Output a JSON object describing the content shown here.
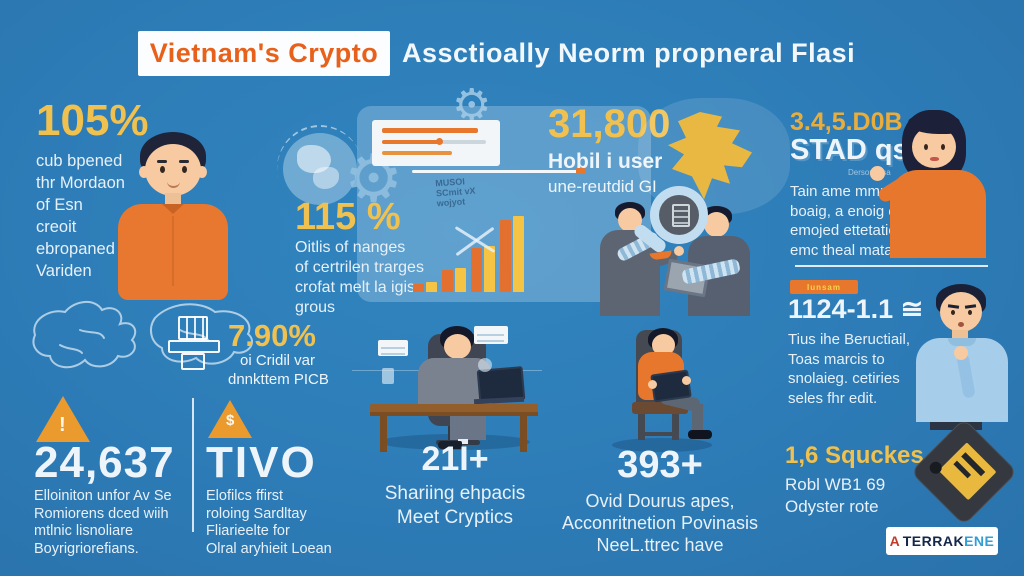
{
  "header": {
    "highlight": "Vietnam's Crypto",
    "rest": "Assctioally Neorm propneral Flasi"
  },
  "stats": {
    "s105": {
      "value": "105%",
      "lines": [
        "cub bpened",
        "thr Mordaon",
        "of Esn",
        "creoit",
        "ebropaned",
        "Variden"
      ]
    },
    "s115": {
      "value": "115 %",
      "lines": [
        "Oitlis of nanges",
        "of certrilen trarges",
        "crofat melt la igis",
        "grous"
      ]
    },
    "s31800": {
      "value": "31,800",
      "line1": "Hobil i user",
      "line2": "une-reutdid GI"
    },
    "s345": {
      "value": "3.4,5.D0B",
      "sub": "STAD qs",
      "ghost": "Dersonfinsa",
      "lines": [
        "Tain ame mmruois",
        "boaig, a enoig ero",
        "emojed ettetatioi to",
        "emc theal matablis"
      ]
    },
    "s790": {
      "value": "7.90%",
      "lines": [
        "oi Cridil var",
        "dnnkttem PICB"
      ]
    },
    "s1124": {
      "badge": "Iunsam",
      "value": "1124-1.1 ≅",
      "lines": [
        "Tius ihe Beructiail,",
        "Toas marcis to",
        "snolaieg. cetiries",
        "seles fhr edit."
      ]
    },
    "s24637": {
      "glyph": "!",
      "value": "24,637",
      "lines": [
        "Elloiniton unfor Av Se",
        "Romiorens dced wiih",
        "mtlnic lisnoliare",
        "Boyrigriorefians."
      ]
    },
    "stivo": {
      "glyph": "$",
      "value": "TIVO",
      "lines": [
        "Elofilcs ffirst",
        "roloing Sardltay",
        "Fliarieelte for",
        "Olral aryhieit Loean"
      ]
    },
    "s21": {
      "value": "21I+",
      "lines": [
        "Shariing ehpacis",
        "Meet Cryptics"
      ]
    },
    "s393": {
      "value": "393+",
      "lines": [
        "Ovid Dourus apes,",
        "Acconritnetion Povinasis",
        "NeeL.ttrec have"
      ]
    },
    "s16": {
      "value": "1,6 Squckes",
      "lines": [
        "Robl WB1 69",
        "Odyster rote"
      ]
    }
  },
  "panel": {
    "stamp": [
      "MUSOI",
      "SCmit vX",
      "wojyot"
    ]
  },
  "icons": {
    "gear": "⚙"
  },
  "logo": {
    "mark": "A",
    "name_dark": "TERRAK",
    "name_light": "ENE"
  },
  "colors": {
    "background": "#2d7cb7",
    "accent_yellow": "#f0c14e",
    "accent_orange": "#e8772e",
    "title_orange": "#e8611a",
    "logo_navy": "#14274a",
    "logo_blue": "#2f9fd6"
  },
  "bar_chart": {
    "type": "bar",
    "pairs": [
      [
        8,
        10
      ],
      [
        22,
        24
      ],
      [
        44,
        46
      ],
      [
        72,
        76
      ]
    ],
    "colors": [
      "#e4702f",
      "#f5c445"
    ]
  }
}
